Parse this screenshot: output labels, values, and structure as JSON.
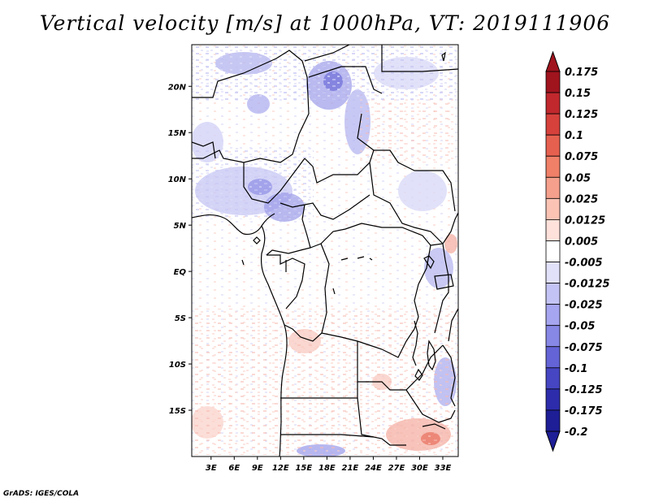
{
  "title": "Vertical velocity [m/s] at 1000hPa, VT: 2019111906",
  "credit": "GrADS: IGES/COLA",
  "map": {
    "lat_labels": [
      "20N",
      "15N",
      "10N",
      "5N",
      "EQ",
      "5S",
      "10S",
      "15S"
    ],
    "lat_values": [
      20,
      15,
      10,
      5,
      0,
      -5,
      -10,
      -15
    ],
    "lon_labels": [
      "3E",
      "6E",
      "9E",
      "12E",
      "15E",
      "18E",
      "21E",
      "24E",
      "27E",
      "30E",
      "33E"
    ],
    "lon_values": [
      3,
      6,
      9,
      12,
      15,
      18,
      21,
      24,
      27,
      30,
      33
    ],
    "lon_range": [
      0.5,
      35
    ],
    "lat_range": [
      -20,
      24.5
    ]
  },
  "colorbar": {
    "labels": [
      "0.175",
      "0.15",
      "0.125",
      "0.1",
      "0.075",
      "0.05",
      "0.025",
      "0.0125",
      "0.005",
      "-0.005",
      "-0.0125",
      "-0.025",
      "-0.05",
      "-0.075",
      "-0.1",
      "-0.125",
      "-0.175",
      "-0.2"
    ],
    "colors": [
      "#a0141e",
      "#c0282d",
      "#d7413c",
      "#e6604f",
      "#f08068",
      "#f5a08c",
      "#fac3b4",
      "#fde1da",
      "#ffffff",
      "#e1e1fa",
      "#c3c3f5",
      "#a5a5f0",
      "#8787e6",
      "#6464d7",
      "#4646c3",
      "#2d2dac",
      "#1e1e96"
    ],
    "top_arrow_color": "#a0141e",
    "bottom_arrow_color": "#1e1e96"
  }
}
